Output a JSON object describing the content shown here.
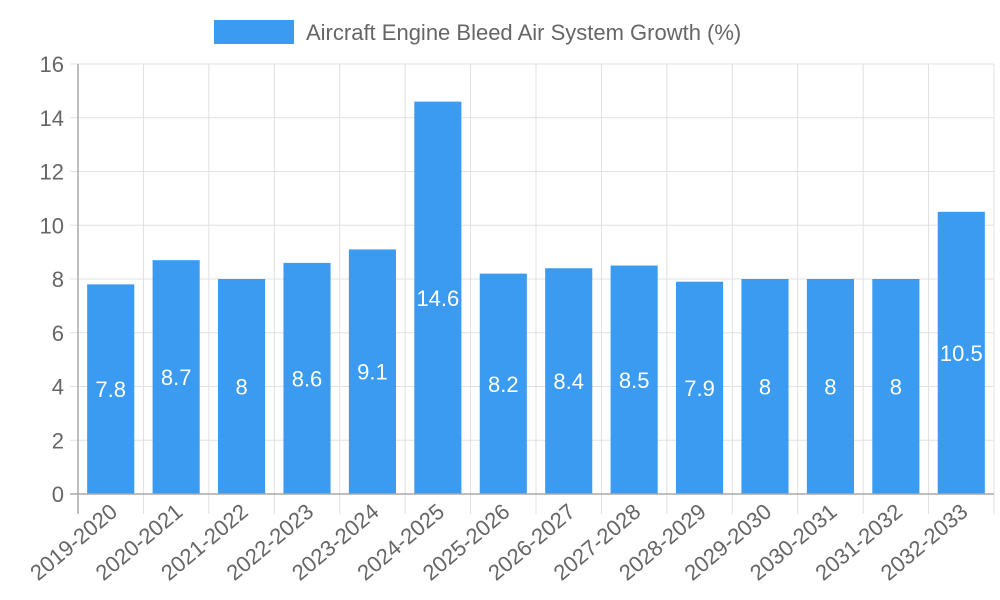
{
  "chart_data": {
    "type": "bar",
    "title": "",
    "xlabel": "",
    "ylabel": "",
    "legend": {
      "position": "top",
      "entries": [
        "Aircraft Engine Bleed Air System Growth (%)"
      ]
    },
    "categories": [
      "2019-2020",
      "2020-2021",
      "2021-2022",
      "2022-2023",
      "2023-2024",
      "2024-2025",
      "2025-2026",
      "2026-2027",
      "2027-2028",
      "2028-2029",
      "2029-2030",
      "2030-2031",
      "2031-2032",
      "2032-2033"
    ],
    "series": [
      {
        "name": "Aircraft Engine Bleed Air System Growth (%)",
        "values": [
          7.8,
          8.7,
          8,
          8.6,
          9.1,
          14.6,
          8.2,
          8.4,
          8.5,
          7.9,
          8,
          8,
          8,
          10.5
        ],
        "color": "#3a9bf0"
      }
    ],
    "data_labels": [
      "7.8",
      "8.7",
      "8",
      "8.6",
      "9.1",
      "14.6",
      "8.2",
      "8.4",
      "8.5",
      "7.9",
      "8",
      "8",
      "8",
      "10.5"
    ],
    "ylim": [
      0,
      16
    ],
    "yticks": [
      0,
      2,
      4,
      6,
      8,
      10,
      12,
      14,
      16
    ],
    "ytick_labels": [
      "0",
      "2",
      "4",
      "6",
      "8",
      "10",
      "12",
      "14",
      "16"
    ],
    "grid": true
  }
}
